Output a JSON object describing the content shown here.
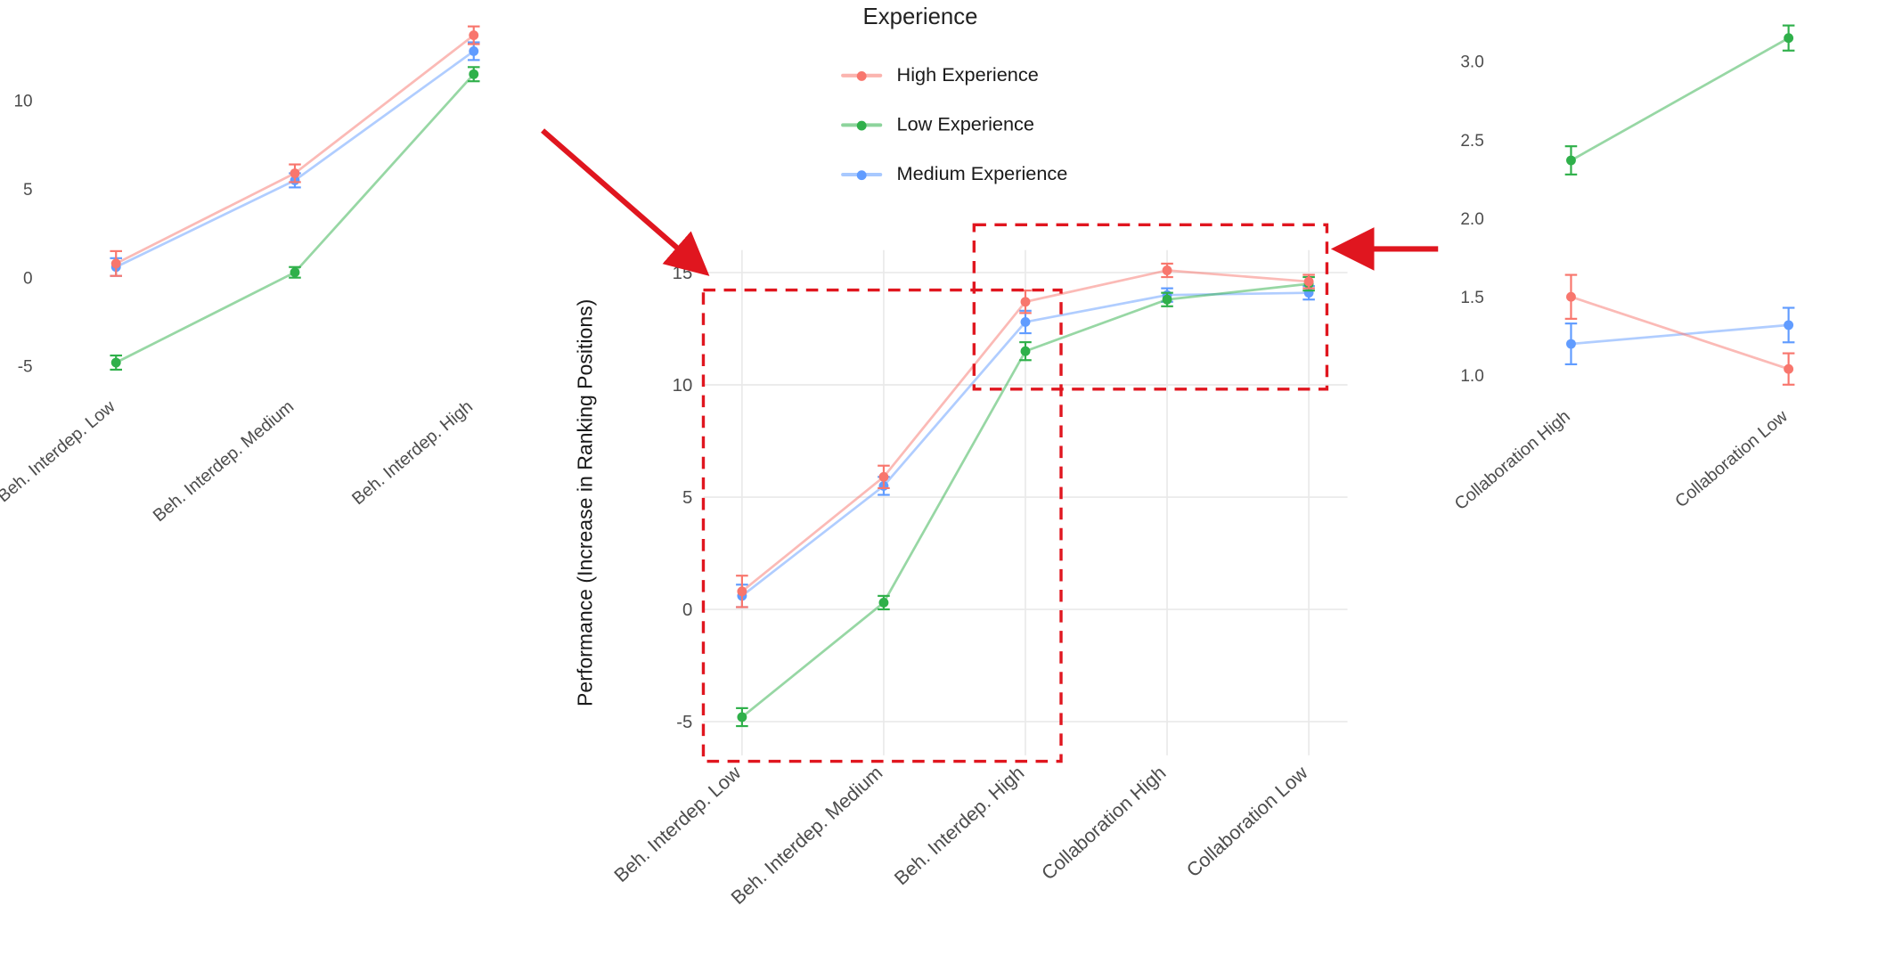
{
  "page": {
    "background": "#ffffff"
  },
  "colors": {
    "high": "#F8766D",
    "low": "#2FB04A",
    "medium": "#619CFF",
    "annotation_red": "#E0161F",
    "grid": "#E9E9E9",
    "axis_text": "#4D4D4D",
    "axis_title": "#1A1A1A"
  },
  "legend": {
    "title": "Experience",
    "items": [
      {
        "label": "High Experience",
        "color_key": "high"
      },
      {
        "label": "Low Experience",
        "color_key": "low"
      },
      {
        "label": "Medium Experience",
        "color_key": "medium"
      }
    ]
  },
  "chart_data": [
    {
      "id": "left-zoom",
      "type": "line",
      "title": "",
      "xlabel": "",
      "ylabel": "",
      "grid": false,
      "ylim": [
        -6.3,
        14.6
      ],
      "yticks": [
        {
          "v": 10,
          "label": "10"
        },
        {
          "v": 5,
          "label": "5"
        },
        {
          "v": 0,
          "label": "0"
        },
        {
          "v": -5,
          "label": "-5"
        }
      ],
      "categories": [
        "Beh. Interdep. Low",
        "Beh. Interdep. Medium",
        "Beh. Interdep. High"
      ],
      "series": [
        {
          "name": "High Experience",
          "color_key": "high",
          "values": [
            0.8,
            5.9,
            13.7
          ],
          "errors": [
            0.7,
            0.5,
            0.5
          ]
        },
        {
          "name": "Low Experience",
          "color_key": "low",
          "values": [
            -4.8,
            0.3,
            11.5
          ],
          "errors": [
            0.4,
            0.3,
            0.4
          ]
        },
        {
          "name": "Medium Experience",
          "color_key": "medium",
          "values": [
            0.6,
            5.5,
            12.8
          ],
          "errors": [
            0.5,
            0.4,
            0.5
          ]
        }
      ]
    },
    {
      "id": "main",
      "type": "line",
      "title": "",
      "xlabel": "",
      "ylabel": "Performance (Increase in Ranking Positions)",
      "grid": true,
      "ylim": [
        -6.5,
        16
      ],
      "yticks": [
        {
          "v": 15,
          "label": "15"
        },
        {
          "v": 10,
          "label": "10"
        },
        {
          "v": 5,
          "label": "5"
        },
        {
          "v": 0,
          "label": "0"
        },
        {
          "v": -5,
          "label": "-5"
        }
      ],
      "categories": [
        "Beh. Interdep. Low",
        "Beh. Interdep. Medium",
        "Beh. Interdep. High",
        "Collaboration High",
        "Collaboration Low"
      ],
      "series": [
        {
          "name": "High Experience",
          "color_key": "high",
          "values": [
            0.8,
            5.9,
            13.7,
            15.1,
            14.6
          ],
          "errors": [
            0.7,
            0.5,
            0.5,
            0.3,
            0.3
          ]
        },
        {
          "name": "Low Experience",
          "color_key": "low",
          "values": [
            -4.8,
            0.3,
            11.5,
            13.8,
            14.5
          ],
          "errors": [
            0.4,
            0.3,
            0.4,
            0.3,
            0.3
          ]
        },
        {
          "name": "Medium Experience",
          "color_key": "medium",
          "values": [
            0.6,
            5.5,
            12.8,
            14.0,
            14.1
          ],
          "errors": [
            0.5,
            0.4,
            0.5,
            0.3,
            0.3
          ]
        }
      ]
    },
    {
      "id": "right-zoom",
      "type": "line",
      "title": "",
      "xlabel": "",
      "ylabel": "",
      "grid": false,
      "ylim": [
        0.85,
        3.3
      ],
      "yticks": [
        {
          "v": 3.0,
          "label": "3.0"
        },
        {
          "v": 2.5,
          "label": "2.5"
        },
        {
          "v": 2.0,
          "label": "2.0"
        },
        {
          "v": 1.5,
          "label": "1.5"
        },
        {
          "v": 1.0,
          "label": "1.0"
        }
      ],
      "categories": [
        "Collaboration High",
        "Collaboration Low"
      ],
      "series": [
        {
          "name": "High Experience",
          "color_key": "high",
          "values": [
            1.5,
            1.04
          ],
          "errors": [
            0.14,
            0.1
          ]
        },
        {
          "name": "Low Experience",
          "color_key": "low",
          "values": [
            2.37,
            3.15
          ],
          "errors": [
            0.09,
            0.08
          ]
        },
        {
          "name": "Medium Experience",
          "color_key": "medium",
          "values": [
            1.2,
            1.32
          ],
          "errors": [
            0.13,
            0.11
          ]
        }
      ]
    }
  ],
  "annotations": {
    "boxes": [
      "highlight-box-left-region",
      "highlight-box-right-region"
    ],
    "arrows": [
      "arrow-to-left-region",
      "arrow-to-right-region"
    ]
  }
}
